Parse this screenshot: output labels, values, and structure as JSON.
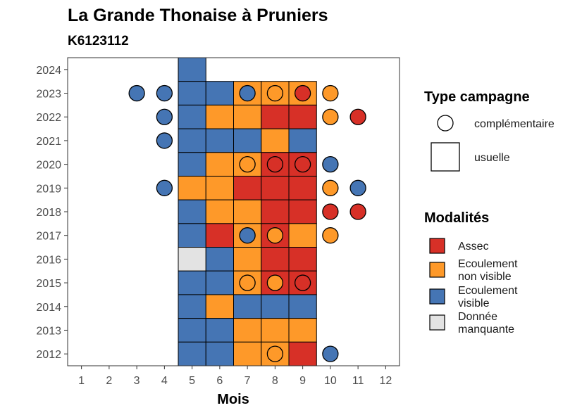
{
  "chart_data": {
    "type": "heatmap",
    "title": "La Grande Thonaise à Pruniers",
    "subtitle": "K6123112",
    "xlabel": "Mois",
    "ylabel": "",
    "x_ticks": [
      "1",
      "2",
      "3",
      "4",
      "5",
      "6",
      "7",
      "8",
      "9",
      "10",
      "11",
      "12"
    ],
    "y_ticks": [
      "2012",
      "2013",
      "2014",
      "2015",
      "2016",
      "2017",
      "2018",
      "2019",
      "2020",
      "2021",
      "2022",
      "2023",
      "2024"
    ],
    "xlim": [
      0.5,
      12.5
    ],
    "ylim": [
      2011.5,
      2024.5
    ],
    "grid": false,
    "legend_position": "right",
    "colors": {
      "Assec": "#d73027",
      "Ecoulement non visible": "#fe9929",
      "Ecoulement visible": "#4575b4",
      "Donnée manquante": "#e3e3e3"
    },
    "legends": {
      "shape": {
        "title": "Type campagne",
        "items": [
          {
            "label": "complémentaire",
            "shape": "circle"
          },
          {
            "label": "usuelle",
            "shape": "square"
          }
        ]
      },
      "fill": {
        "title": "Modalités",
        "items": [
          {
            "key": "Assec",
            "lines": [
              "Assec"
            ]
          },
          {
            "key": "Ecoulement non visible",
            "lines": [
              "Ecoulement",
              "non visible"
            ]
          },
          {
            "key": "Ecoulement visible",
            "lines": [
              "Ecoulement",
              "visible"
            ]
          },
          {
            "key": "Donnée manquante",
            "lines": [
              "Donnée",
              "manquante"
            ]
          }
        ]
      }
    },
    "series": [
      {
        "campaign": "usuelle",
        "shape": "square",
        "points": [
          {
            "year": 2024,
            "month": 5,
            "value": "Ecoulement visible"
          },
          {
            "year": 2023,
            "month": 5,
            "value": "Ecoulement visible"
          },
          {
            "year": 2023,
            "month": 6,
            "value": "Ecoulement visible"
          },
          {
            "year": 2023,
            "month": 7,
            "value": "Ecoulement non visible"
          },
          {
            "year": 2023,
            "month": 8,
            "value": "Ecoulement non visible"
          },
          {
            "year": 2023,
            "month": 9,
            "value": "Ecoulement non visible"
          },
          {
            "year": 2022,
            "month": 5,
            "value": "Ecoulement visible"
          },
          {
            "year": 2022,
            "month": 6,
            "value": "Ecoulement non visible"
          },
          {
            "year": 2022,
            "month": 7,
            "value": "Ecoulement non visible"
          },
          {
            "year": 2022,
            "month": 8,
            "value": "Assec"
          },
          {
            "year": 2022,
            "month": 9,
            "value": "Assec"
          },
          {
            "year": 2021,
            "month": 5,
            "value": "Ecoulement visible"
          },
          {
            "year": 2021,
            "month": 6,
            "value": "Ecoulement visible"
          },
          {
            "year": 2021,
            "month": 7,
            "value": "Ecoulement visible"
          },
          {
            "year": 2021,
            "month": 8,
            "value": "Ecoulement non visible"
          },
          {
            "year": 2021,
            "month": 9,
            "value": "Ecoulement visible"
          },
          {
            "year": 2020,
            "month": 5,
            "value": "Ecoulement visible"
          },
          {
            "year": 2020,
            "month": 6,
            "value": "Ecoulement non visible"
          },
          {
            "year": 2020,
            "month": 7,
            "value": "Ecoulement non visible"
          },
          {
            "year": 2020,
            "month": 8,
            "value": "Assec"
          },
          {
            "year": 2020,
            "month": 9,
            "value": "Assec"
          },
          {
            "year": 2019,
            "month": 5,
            "value": "Ecoulement non visible"
          },
          {
            "year": 2019,
            "month": 6,
            "value": "Ecoulement non visible"
          },
          {
            "year": 2019,
            "month": 7,
            "value": "Assec"
          },
          {
            "year": 2019,
            "month": 8,
            "value": "Assec"
          },
          {
            "year": 2019,
            "month": 9,
            "value": "Assec"
          },
          {
            "year": 2018,
            "month": 5,
            "value": "Ecoulement visible"
          },
          {
            "year": 2018,
            "month": 6,
            "value": "Ecoulement non visible"
          },
          {
            "year": 2018,
            "month": 7,
            "value": "Ecoulement non visible"
          },
          {
            "year": 2018,
            "month": 8,
            "value": "Assec"
          },
          {
            "year": 2018,
            "month": 9,
            "value": "Assec"
          },
          {
            "year": 2017,
            "month": 5,
            "value": "Ecoulement visible"
          },
          {
            "year": 2017,
            "month": 6,
            "value": "Assec"
          },
          {
            "year": 2017,
            "month": 7,
            "value": "Ecoulement non visible"
          },
          {
            "year": 2017,
            "month": 8,
            "value": "Assec"
          },
          {
            "year": 2017,
            "month": 9,
            "value": "Ecoulement non visible"
          },
          {
            "year": 2016,
            "month": 5,
            "value": "Donnée manquante"
          },
          {
            "year": 2016,
            "month": 6,
            "value": "Ecoulement visible"
          },
          {
            "year": 2016,
            "month": 7,
            "value": "Ecoulement non visible"
          },
          {
            "year": 2016,
            "month": 8,
            "value": "Assec"
          },
          {
            "year": 2016,
            "month": 9,
            "value": "Assec"
          },
          {
            "year": 2015,
            "month": 5,
            "value": "Ecoulement visible"
          },
          {
            "year": 2015,
            "month": 6,
            "value": "Ecoulement visible"
          },
          {
            "year": 2015,
            "month": 7,
            "value": "Ecoulement non visible"
          },
          {
            "year": 2015,
            "month": 8,
            "value": "Assec"
          },
          {
            "year": 2015,
            "month": 9,
            "value": "Assec"
          },
          {
            "year": 2014,
            "month": 5,
            "value": "Ecoulement visible"
          },
          {
            "year": 2014,
            "month": 6,
            "value": "Ecoulement non visible"
          },
          {
            "year": 2014,
            "month": 7,
            "value": "Ecoulement visible"
          },
          {
            "year": 2014,
            "month": 8,
            "value": "Ecoulement visible"
          },
          {
            "year": 2014,
            "month": 9,
            "value": "Ecoulement visible"
          },
          {
            "year": 2013,
            "month": 5,
            "value": "Ecoulement visible"
          },
          {
            "year": 2013,
            "month": 6,
            "value": "Ecoulement visible"
          },
          {
            "year": 2013,
            "month": 7,
            "value": "Ecoulement non visible"
          },
          {
            "year": 2013,
            "month": 8,
            "value": "Ecoulement non visible"
          },
          {
            "year": 2013,
            "month": 9,
            "value": "Ecoulement non visible"
          },
          {
            "year": 2012,
            "month": 5,
            "value": "Ecoulement visible"
          },
          {
            "year": 2012,
            "month": 6,
            "value": "Ecoulement visible"
          },
          {
            "year": 2012,
            "month": 7,
            "value": "Ecoulement non visible"
          },
          {
            "year": 2012,
            "month": 8,
            "value": "Ecoulement non visible"
          },
          {
            "year": 2012,
            "month": 9,
            "value": "Assec"
          }
        ]
      },
      {
        "campaign": "complémentaire",
        "shape": "circle",
        "points": [
          {
            "year": 2023,
            "month": 3,
            "value": "Ecoulement visible"
          },
          {
            "year": 2023,
            "month": 4,
            "value": "Ecoulement visible"
          },
          {
            "year": 2023,
            "month": 7,
            "value": "Ecoulement visible"
          },
          {
            "year": 2023,
            "month": 8,
            "value": "Ecoulement non visible"
          },
          {
            "year": 2023,
            "month": 9,
            "value": "Assec"
          },
          {
            "year": 2023,
            "month": 10,
            "value": "Ecoulement non visible"
          },
          {
            "year": 2022,
            "month": 4,
            "value": "Ecoulement visible"
          },
          {
            "year": 2022,
            "month": 10,
            "value": "Ecoulement non visible"
          },
          {
            "year": 2022,
            "month": 11,
            "value": "Assec"
          },
          {
            "year": 2021,
            "month": 4,
            "value": "Ecoulement visible"
          },
          {
            "year": 2020,
            "month": 7,
            "value": "Ecoulement non visible"
          },
          {
            "year": 2020,
            "month": 8,
            "value": "Assec"
          },
          {
            "year": 2020,
            "month": 9,
            "value": "Assec"
          },
          {
            "year": 2020,
            "month": 10,
            "value": "Ecoulement visible"
          },
          {
            "year": 2019,
            "month": 4,
            "value": "Ecoulement visible"
          },
          {
            "year": 2019,
            "month": 10,
            "value": "Ecoulement non visible"
          },
          {
            "year": 2019,
            "month": 11,
            "value": "Ecoulement visible"
          },
          {
            "year": 2018,
            "month": 10,
            "value": "Assec"
          },
          {
            "year": 2018,
            "month": 11,
            "value": "Assec"
          },
          {
            "year": 2017,
            "month": 7,
            "value": "Ecoulement visible"
          },
          {
            "year": 2017,
            "month": 8,
            "value": "Ecoulement non visible"
          },
          {
            "year": 2017,
            "month": 10,
            "value": "Ecoulement non visible"
          },
          {
            "year": 2015,
            "month": 7,
            "value": "Ecoulement non visible"
          },
          {
            "year": 2015,
            "month": 8,
            "value": "Ecoulement non visible"
          },
          {
            "year": 2015,
            "month": 9,
            "value": "Assec"
          },
          {
            "year": 2012,
            "month": 8,
            "value": "Ecoulement non visible"
          },
          {
            "year": 2012,
            "month": 10,
            "value": "Ecoulement visible"
          }
        ]
      }
    ]
  }
}
